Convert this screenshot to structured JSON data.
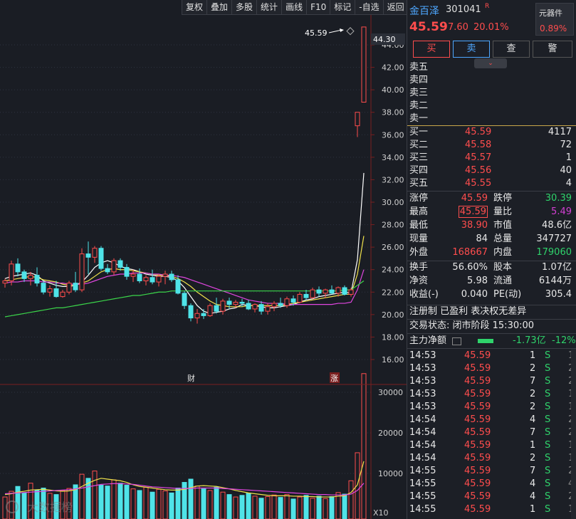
{
  "toolbar": [
    "复权",
    "叠加",
    "多股",
    "统计",
    "画线",
    "F10",
    "标记",
    "-自选",
    "返回"
  ],
  "chart": {
    "price_axis_ticks": [
      "44.00",
      "42.00",
      "40.00",
      "38.00",
      "36.00",
      "34.00",
      "32.00",
      "30.00",
      "28.00",
      "26.00",
      "24.00",
      "22.00",
      "20.00",
      "18.00",
      "16.00"
    ],
    "current_price_tag": "44.30",
    "high_annotation": "45.59",
    "event_marker_1": "财",
    "event_marker_2": "涨",
    "volume_axis_ticks": [
      "30000",
      "20000",
      "10000"
    ],
    "volume_unit": "X10",
    "watermark": "大数据榜"
  },
  "chart_data": {
    "type": "candlestick",
    "price_ylim": [
      15.5,
      46.5
    ],
    "volume_ylim": [
      0,
      36000
    ],
    "candles": [
      [
        22.8,
        23.2,
        22.4,
        23.0
      ],
      [
        23.0,
        24.8,
        22.6,
        24.5
      ],
      [
        24.5,
        25.0,
        23.4,
        23.8
      ],
      [
        23.8,
        24.0,
        22.9,
        23.2
      ],
      [
        23.2,
        23.8,
        22.6,
        23.5
      ],
      [
        23.5,
        24.2,
        22.5,
        22.8
      ],
      [
        22.8,
        23.0,
        21.8,
        22.0
      ],
      [
        22.0,
        22.6,
        21.6,
        22.3
      ],
      [
        22.3,
        23.0,
        21.5,
        21.6
      ],
      [
        21.6,
        22.2,
        21.5,
        22.0
      ],
      [
        22.0,
        23.0,
        21.8,
        22.8
      ],
      [
        22.8,
        23.8,
        22.0,
        22.2
      ],
      [
        22.2,
        25.9,
        22.0,
        25.4
      ],
      [
        25.4,
        26.5,
        23.6,
        25.1
      ],
      [
        25.1,
        26.1,
        24.6,
        25.9
      ],
      [
        25.9,
        26.1,
        23.9,
        24.1
      ],
      [
        24.1,
        24.5,
        23.6,
        23.8
      ],
      [
        23.8,
        25.0,
        23.5,
        24.8
      ],
      [
        24.8,
        25.0,
        23.9,
        24.2
      ],
      [
        24.2,
        24.5,
        23.1,
        23.4
      ],
      [
        23.4,
        24.0,
        22.9,
        23.6
      ],
      [
        23.6,
        24.1,
        22.8,
        23.0
      ],
      [
        23.0,
        23.5,
        22.6,
        23.3
      ],
      [
        23.3,
        24.0,
        22.7,
        22.9
      ],
      [
        22.9,
        23.6,
        22.5,
        23.4
      ],
      [
        23.4,
        23.9,
        22.7,
        23.6
      ],
      [
        23.6,
        23.9,
        22.9,
        23.1
      ],
      [
        23.1,
        23.5,
        21.8,
        21.9
      ],
      [
        21.9,
        22.1,
        20.5,
        20.8
      ],
      [
        20.8,
        21.0,
        19.4,
        19.7
      ],
      [
        19.7,
        20.5,
        19.2,
        20.1
      ],
      [
        20.1,
        20.5,
        19.6,
        19.9
      ],
      [
        19.9,
        21.0,
        19.8,
        20.8
      ],
      [
        20.8,
        21.5,
        20.1,
        20.3
      ],
      [
        20.3,
        21.4,
        20.0,
        21.2
      ],
      [
        21.2,
        21.5,
        20.5,
        20.9
      ],
      [
        20.9,
        21.3,
        20.6,
        21.1
      ],
      [
        21.1,
        21.4,
        20.7,
        21.0
      ],
      [
        21.0,
        21.3,
        20.4,
        20.5
      ],
      [
        20.5,
        21.0,
        20.2,
        20.9
      ],
      [
        20.9,
        21.2,
        20.0,
        20.3
      ],
      [
        20.3,
        21.0,
        20.0,
        20.7
      ],
      [
        20.7,
        21.2,
        20.3,
        21.0
      ],
      [
        21.0,
        21.5,
        20.6,
        20.8
      ],
      [
        20.8,
        21.6,
        20.6,
        21.4
      ],
      [
        21.4,
        21.7,
        20.8,
        21.1
      ],
      [
        21.1,
        22.0,
        21.0,
        21.8
      ],
      [
        21.8,
        22.2,
        21.3,
        21.5
      ],
      [
        21.5,
        22.4,
        21.4,
        22.2
      ],
      [
        22.2,
        22.5,
        21.6,
        21.9
      ],
      [
        21.9,
        22.3,
        21.5,
        22.2
      ],
      [
        22.2,
        22.6,
        21.8,
        21.9
      ],
      [
        21.9,
        22.5,
        21.6,
        22.4
      ],
      [
        22.4,
        22.6,
        21.7,
        21.8
      ],
      [
        21.8,
        22.4,
        21.6,
        22.2
      ],
      [
        36.8,
        38.0,
        35.8,
        38.0
      ],
      [
        38.9,
        45.59,
        38.9,
        45.59
      ]
    ],
    "volumes": [
      4200,
      5600,
      6800,
      5200,
      7600,
      5900,
      6400,
      5100,
      4800,
      5800,
      6300,
      7200,
      9800,
      8800,
      10600,
      7100,
      6900,
      8400,
      7600,
      7100,
      6200,
      5800,
      6600,
      5400,
      6100,
      5700,
      5200,
      6400,
      7800,
      8600,
      6900,
      6200,
      5800,
      6600,
      5400,
      4800,
      4200,
      4600,
      5100,
      4400,
      3900,
      4300,
      4700,
      4100,
      4800,
      3700,
      4200,
      4600,
      3900,
      4400,
      3800,
      4300,
      5300,
      4900,
      8200,
      15100,
      34600
    ],
    "ma_lines": [
      {
        "color": "#ffffff",
        "values": [
          23.2,
          23.4,
          23.5,
          23.6,
          23.7,
          23.5,
          23.0,
          22.8,
          22.6,
          22.5,
          22.5,
          22.6,
          22.9,
          23.5,
          24.2,
          24.6,
          24.8,
          24.6,
          24.3,
          24.1,
          24.0,
          23.8,
          23.6,
          23.5,
          23.4,
          23.4,
          23.3,
          23.0,
          22.4,
          21.6,
          20.8,
          20.3,
          20.1,
          20.2,
          20.3,
          20.5,
          20.6,
          20.9,
          20.8,
          20.8,
          20.7,
          20.6,
          20.6,
          20.7,
          20.8,
          20.9,
          21.1,
          21.3,
          21.4,
          21.6,
          21.7,
          21.8,
          21.9,
          22.0,
          21.9,
          24.9,
          32.6
        ]
      },
      {
        "color": "#f0e24b",
        "values": [
          23.0,
          23.1,
          23.2,
          23.3,
          23.4,
          23.3,
          23.1,
          23.0,
          22.9,
          22.7,
          22.6,
          22.6,
          22.8,
          23.0,
          23.4,
          23.8,
          24.0,
          24.1,
          24.0,
          24.0,
          23.9,
          23.8,
          23.7,
          23.6,
          23.5,
          23.5,
          23.4,
          23.2,
          22.9,
          22.5,
          22.0,
          21.6,
          21.2,
          20.9,
          20.8,
          20.7,
          20.7,
          20.7,
          20.8,
          20.8,
          20.8,
          20.8,
          20.8,
          20.8,
          20.9,
          21.0,
          21.1,
          21.2,
          21.3,
          21.4,
          21.5,
          21.6,
          21.7,
          21.8,
          21.8,
          23.6,
          27.0
        ]
      },
      {
        "color": "#e046e0",
        "values": [
          22.8,
          22.9,
          22.9,
          23.0,
          23.0,
          23.0,
          22.9,
          22.9,
          22.8,
          22.8,
          22.7,
          22.7,
          22.7,
          22.8,
          23.0,
          23.2,
          23.4,
          23.5,
          23.6,
          23.6,
          23.7,
          23.7,
          23.7,
          23.6,
          23.6,
          23.5,
          23.5,
          23.4,
          23.3,
          23.1,
          22.9,
          22.7,
          22.5,
          22.3,
          22.1,
          21.9,
          21.7,
          21.5,
          21.3,
          21.2,
          21.1,
          21.0,
          21.0,
          21.0,
          20.9,
          20.9,
          20.9,
          20.9,
          20.9,
          20.9,
          20.9,
          20.9,
          21.0,
          21.0,
          21.1,
          22.2,
          24.0
        ]
      },
      {
        "color": "#3bd64a",
        "values": [
          19.8,
          19.9,
          20.0,
          20.1,
          20.2,
          20.3,
          20.4,
          20.5,
          20.6,
          20.6,
          20.7,
          20.8,
          20.9,
          21.0,
          21.1,
          21.2,
          21.3,
          21.4,
          21.5,
          21.6,
          21.7,
          21.7,
          21.8,
          21.9,
          22.0,
          22.0,
          22.1,
          22.1,
          22.1,
          22.1,
          22.1,
          22.1,
          22.1,
          22.1,
          22.1,
          22.1,
          22.1,
          22.1,
          22.1,
          22.1,
          22.1,
          22.1,
          22.1,
          22.1,
          22.1,
          22.1,
          22.1,
          22.1,
          22.1,
          22.1,
          22.1,
          22.1,
          22.1,
          22.2,
          22.2,
          22.6,
          23.0
        ]
      }
    ],
    "vol_ma_lines": [
      {
        "color": "#f0e24b",
        "values": [
          4800,
          5000,
          5400,
          5600,
          5900,
          6000,
          6100,
          5900,
          5700,
          5600,
          5700,
          6000,
          6800,
          7600,
          8300,
          8800,
          8600,
          8400,
          8200,
          7800,
          7200,
          6800,
          6600,
          6400,
          6200,
          6000,
          5900,
          5900,
          6100,
          6500,
          6900,
          7000,
          6900,
          6800,
          6500,
          6200,
          5800,
          5500,
          5200,
          5000,
          4800,
          4600,
          4500,
          4500,
          4500,
          4400,
          4400,
          4300,
          4300,
          4200,
          4200,
          4200,
          4400,
          4500,
          5300,
          7200,
          13000
        ]
      },
      {
        "color": "#e046e0",
        "values": [
          5000,
          5100,
          5200,
          5300,
          5400,
          5500,
          5600,
          5700,
          5800,
          5900,
          6000,
          6200,
          6400,
          6700,
          7000,
          7300,
          7400,
          7500,
          7500,
          7400,
          7300,
          7100,
          6900,
          6700,
          6600,
          6500,
          6400,
          6300,
          6300,
          6300,
          6400,
          6400,
          6400,
          6400,
          6300,
          6200,
          6100,
          6000,
          5900,
          5800,
          5700,
          5600,
          5500,
          5400,
          5300,
          5200,
          5100,
          5000,
          4900,
          4800,
          4800,
          4700,
          4700,
          4700,
          4900,
          5800,
          7600
        ]
      }
    ]
  },
  "stock": {
    "name": "金百泽",
    "code": "301041",
    "flag": "R",
    "sector": "元器件",
    "sector_change": "0.89%",
    "price": "45.59",
    "change": "7.60",
    "change_pct": "20.01%"
  },
  "trade_buttons": [
    "买",
    "卖",
    "查",
    "警"
  ],
  "sell_levels": [
    {
      "label": "卖五",
      "price": "",
      "vol": ""
    },
    {
      "label": "卖四",
      "price": "",
      "vol": ""
    },
    {
      "label": "卖三",
      "price": "",
      "vol": ""
    },
    {
      "label": "卖二",
      "price": "",
      "vol": ""
    },
    {
      "label": "卖一",
      "price": "",
      "vol": ""
    }
  ],
  "buy_levels": [
    {
      "label": "买一",
      "price": "45.59",
      "vol": "4117"
    },
    {
      "label": "买二",
      "price": "45.58",
      "vol": "72"
    },
    {
      "label": "买三",
      "price": "45.57",
      "vol": "1"
    },
    {
      "label": "买四",
      "price": "45.56",
      "vol": "40"
    },
    {
      "label": "买五",
      "price": "45.55",
      "vol": "4"
    }
  ],
  "stats": [
    {
      "l1": "涨停",
      "v1": "45.59",
      "c1": "red",
      "l2": "跌停",
      "v2": "30.39",
      "c2": "grn"
    },
    {
      "l1": "最高",
      "v1": "45.59",
      "c1": "red",
      "l2": "量比",
      "v2": "5.49",
      "c2": "pur"
    },
    {
      "l1": "最低",
      "v1": "38.90",
      "c1": "red",
      "l2": "市值",
      "v2": "48.6亿",
      "c2": "wht"
    },
    {
      "l1": "现量",
      "v1": "84",
      "c1": "wht",
      "l2": "总量",
      "v2": "347727",
      "c2": "wht"
    },
    {
      "l1": "外盘",
      "v1": "168667",
      "c1": "red",
      "l2": "内盘",
      "v2": "179060",
      "c2": "grn"
    }
  ],
  "stats2": [
    {
      "l1": "换手",
      "v1": "56.60%",
      "l2": "股本",
      "v2": "1.07亿"
    },
    {
      "l1": "净资",
      "v1": "5.98",
      "l2": "流通",
      "v2": "6144万"
    },
    {
      "l1": "收益(-)",
      "v1": "0.040",
      "l2": "PE(动)",
      "v2": "305.4"
    }
  ],
  "info_line": "注册制 已盈利 表决权无差异",
  "trade_state": "交易状态: 闭市阶段 15:30:00",
  "main_flow": {
    "label": "主力净额",
    "value": "-1.73亿",
    "pct": "-12%"
  },
  "ticks": [
    {
      "time": "14:53",
      "price": "45.59",
      "vol": "1",
      "side": "S",
      "n": "1"
    },
    {
      "time": "14:53",
      "price": "45.59",
      "vol": "2",
      "side": "S",
      "n": "2"
    },
    {
      "time": "14:53",
      "price": "45.59",
      "vol": "7",
      "side": "S",
      "n": "2"
    },
    {
      "time": "14:53",
      "price": "45.59",
      "vol": "2",
      "side": "S",
      "n": "1"
    },
    {
      "time": "14:53",
      "price": "45.59",
      "vol": "2",
      "side": "S",
      "n": "1"
    },
    {
      "time": "14:54",
      "price": "45.59",
      "vol": "4",
      "side": "S",
      "n": "2"
    },
    {
      "time": "14:54",
      "price": "45.59",
      "vol": "7",
      "side": "S",
      "n": "2"
    },
    {
      "time": "14:54",
      "price": "45.59",
      "vol": "1",
      "side": "S",
      "n": "1"
    },
    {
      "time": "14:54",
      "price": "45.59",
      "vol": "2",
      "side": "S",
      "n": "1"
    },
    {
      "time": "14:55",
      "price": "45.59",
      "vol": "7",
      "side": "S",
      "n": "2"
    },
    {
      "time": "14:55",
      "price": "45.59",
      "vol": "4",
      "side": "S",
      "n": "4"
    },
    {
      "time": "14:55",
      "price": "45.59",
      "vol": "4",
      "side": "S",
      "n": "2"
    },
    {
      "time": "14:55",
      "price": "45.59",
      "vol": "1",
      "side": "S",
      "n": "1"
    }
  ]
}
